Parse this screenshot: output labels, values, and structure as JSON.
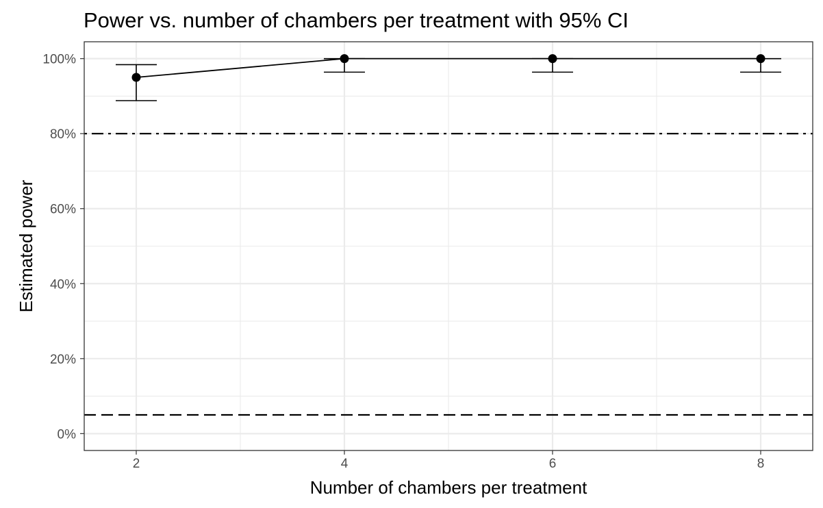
{
  "chart_data": {
    "type": "line",
    "title": "Power vs. number of chambers per treatment with 95% CI",
    "xlabel": "Number of chambers per treatment",
    "ylabel": "Estimated power",
    "xlim": [
      1.5,
      8.5
    ],
    "ylim": [
      -0.045,
      1.045
    ],
    "x_ticks": [
      2,
      4,
      6,
      8
    ],
    "x_tick_labels": [
      "2",
      "4",
      "6",
      "8"
    ],
    "y_ticks": [
      0,
      0.2,
      0.4,
      0.6,
      0.8,
      1.0
    ],
    "y_tick_labels": [
      "0%",
      "20%",
      "40%",
      "60%",
      "80%",
      "100%"
    ],
    "grid": true,
    "series": [
      {
        "x": [
          2,
          4,
          6,
          8
        ],
        "values": [
          0.95,
          1.0,
          1.0,
          1.0
        ],
        "ci_lower": [
          0.888,
          0.964,
          0.964,
          0.964
        ],
        "ci_upper": [
          0.984,
          1.0,
          1.0,
          1.0
        ]
      }
    ],
    "reference_lines": [
      {
        "y": 0.8,
        "style": "dashdot"
      },
      {
        "y": 0.05,
        "style": "dashed"
      }
    ],
    "colors": {
      "line": "#000000",
      "grid": "#ebebeb",
      "panel_border": "#333333",
      "tick_text": "#4d4d4d"
    }
  }
}
